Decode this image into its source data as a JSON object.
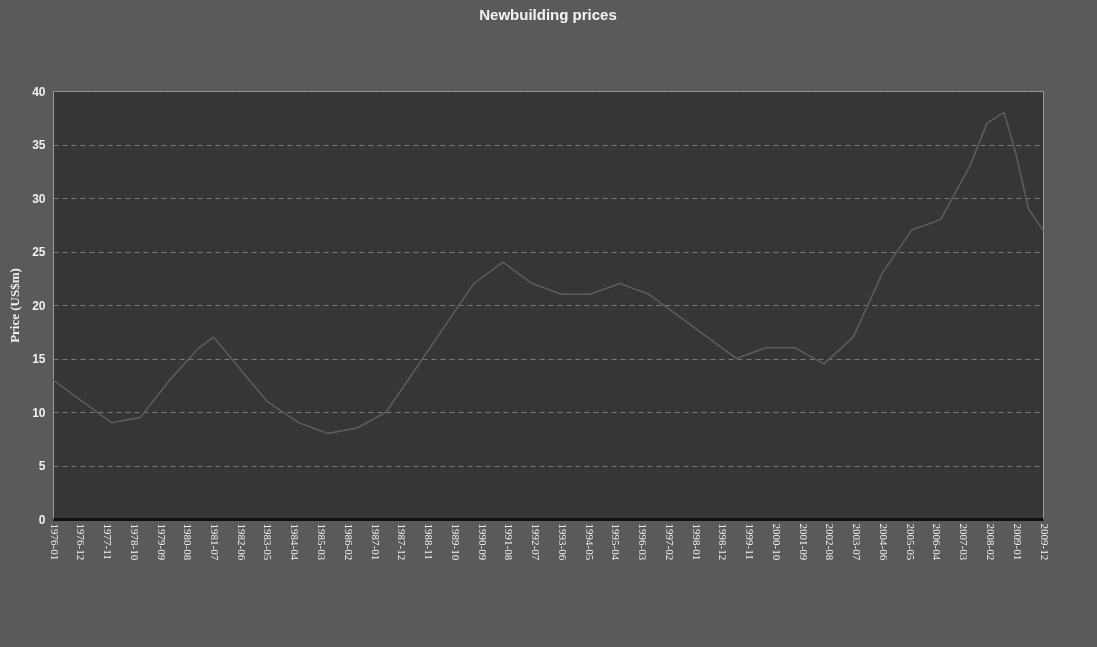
{
  "chart_data": {
    "type": "line",
    "title": "Newbuilding prices",
    "ylabel": "Price (US$m)",
    "x": [
      "1976-01",
      "1977-01",
      "1978-01",
      "1979-01",
      "1980-01",
      "1981-01",
      "1981-07",
      "1982-06",
      "1983-05",
      "1984-06",
      "1985-06",
      "1986-06",
      "1987-06",
      "1988-06",
      "1989-06",
      "1990-06",
      "1991-06",
      "1992-06",
      "1993-06",
      "1994-06",
      "1995-06",
      "1996-06",
      "1997-06",
      "1998-06",
      "1999-06",
      "2000-06",
      "2001-06",
      "2002-06",
      "2003-06",
      "2004-06",
      "2005-06",
      "2006-06",
      "2007-06",
      "2008-01",
      "2008-08",
      "2009-01",
      "2009-06",
      "2009-12"
    ],
    "series": [
      {
        "color": "#5c5c5c",
        "values": [
          13,
          11,
          9,
          9.5,
          13,
          16,
          17,
          14,
          11,
          9,
          8,
          8.5,
          10,
          14,
          18,
          22,
          24,
          22,
          21,
          21,
          22,
          21,
          19,
          17,
          15,
          16,
          16,
          14.5,
          17,
          23,
          27,
          28,
          33,
          37,
          38,
          34,
          29,
          27
        ]
      }
    ],
    "xlim": [
      "1976-01",
      "2009-12"
    ],
    "xticks": [
      "1976-01",
      "1976-12",
      "1977-11",
      "1978-10",
      "1979-09",
      "1980-08",
      "1981-07",
      "1982-06",
      "1983-05",
      "1984-04",
      "1985-03",
      "1986-02",
      "1987-01",
      "1987-12",
      "1988-11",
      "1989-10",
      "1990-09",
      "1991-08",
      "1992-07",
      "1993-06",
      "1994-05",
      "1995-04",
      "1996-03",
      "1997-02",
      "1998-01",
      "1998-12",
      "1999-11",
      "2000-10",
      "2001-09",
      "2002-08",
      "2003-07",
      "2004-06",
      "2005-05",
      "2006-04",
      "2007-03",
      "2008-02",
      "2009-01",
      "2009-12"
    ],
    "ylim": [
      0,
      40
    ],
    "yticks": [
      0,
      5,
      10,
      15,
      20,
      25,
      30,
      35,
      40
    ],
    "grid": "y",
    "line_style": "solid",
    "marker": "none"
  }
}
